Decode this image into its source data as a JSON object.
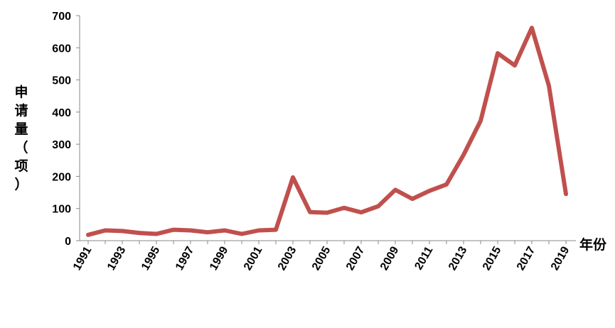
{
  "chart_data": {
    "type": "line",
    "xlabel": "年份",
    "ylabel": "申请量（项）",
    "ylim": [
      0,
      700
    ],
    "yticks": [
      0,
      100,
      200,
      300,
      400,
      500,
      600,
      700
    ],
    "xtick_labels": [
      "1991",
      "1993",
      "1995",
      "1997",
      "1999",
      "2001",
      "2003",
      "2005",
      "2007",
      "2009",
      "2011",
      "2013",
      "2015",
      "2017",
      "2019"
    ],
    "grid": false,
    "legend": "none",
    "series": [
      {
        "color": "#c0504d",
        "x": [
          1991,
          1992,
          1993,
          1994,
          1995,
          1996,
          1997,
          1998,
          1999,
          2000,
          2001,
          2002,
          2003,
          2004,
          2005,
          2006,
          2007,
          2008,
          2009,
          2010,
          2011,
          2012,
          2013,
          2014,
          2015,
          2016,
          2017,
          2018,
          2019
        ],
        "values": [
          18,
          32,
          30,
          24,
          21,
          34,
          32,
          26,
          32,
          21,
          32,
          34,
          197,
          89,
          87,
          102,
          88,
          107,
          158,
          130,
          155,
          175,
          267,
          373,
          583,
          545,
          662,
          482,
          145
        ]
      }
    ]
  }
}
